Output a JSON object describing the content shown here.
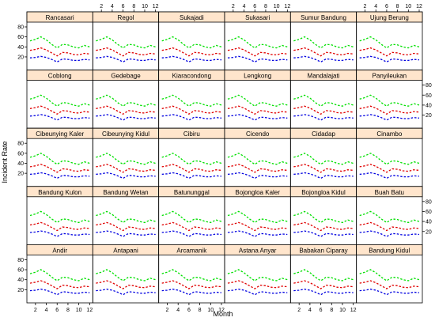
{
  "chart_data": {
    "type": "line",
    "layout": "lattice",
    "xlabel": "Month",
    "ylabel": "Incident Rate",
    "x": [
      1,
      2,
      3,
      4,
      5,
      6,
      7,
      8,
      9,
      10,
      11,
      12
    ],
    "xlim": [
      1,
      12
    ],
    "ylim": [
      0,
      80
    ],
    "x_ticks": [
      2,
      4,
      6,
      8,
      10,
      12
    ],
    "y_ticks": [
      20,
      40,
      60,
      80
    ],
    "grid": false,
    "line_style": "dashed",
    "series": [
      {
        "color": "#00e000",
        "values": [
          52,
          55,
          60,
          54,
          45,
          38,
          45,
          44,
          40,
          38,
          43,
          40
        ]
      },
      {
        "color": "#e00000",
        "values": [
          33,
          35,
          38,
          34,
          28,
          22,
          29,
          28,
          25,
          24,
          27,
          26
        ]
      },
      {
        "color": "#0000e0",
        "values": [
          18,
          19,
          21,
          19,
          15,
          10,
          16,
          15,
          13,
          13,
          15,
          14
        ]
      }
    ],
    "panels_rows": [
      [
        "Rancasari",
        "Regol",
        "Sukajadi",
        "Sukasari",
        "Sumur Bandung",
        "Ujung Berung"
      ],
      [
        "Coblong",
        "Gedebage",
        "Kiaracondong",
        "Lengkong",
        "Mandalajati",
        "Panyileukan"
      ],
      [
        "Cibeunying Kaler",
        "Cibeunying Kidul",
        "Cibiru",
        "Cicendo",
        "Cidadap",
        "Cinambo"
      ],
      [
        "Bandung Kulon",
        "Bandung Wetan",
        "Batununggal",
        "Bojongloa Kaler",
        "Bojongloa Kidul",
        "Buah Batu"
      ],
      [
        "Andir",
        "Antapani",
        "Arcamanik",
        "Astana Anyar",
        "Babakan Ciparay",
        "Bandung Kidul"
      ]
    ],
    "strip_color": "#ffe5cc"
  }
}
